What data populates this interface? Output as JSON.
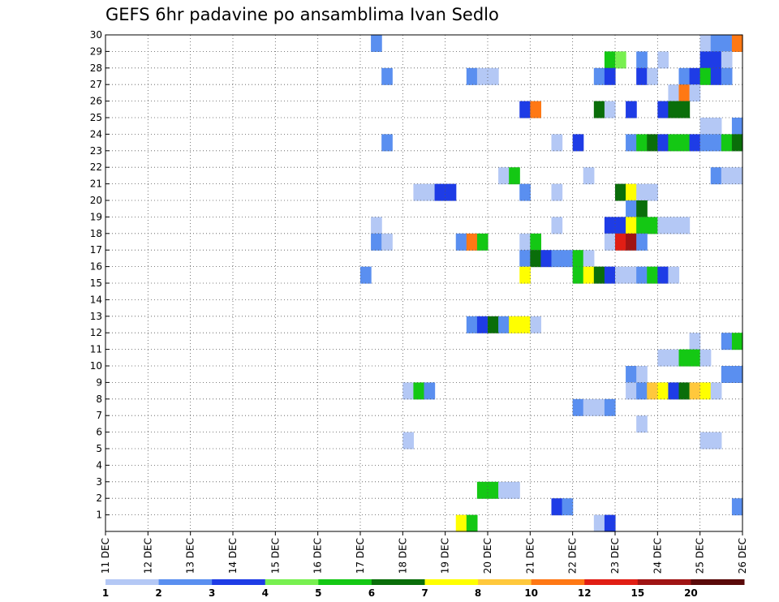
{
  "chart_data": {
    "type": "heatmap",
    "title": "GEFS 6hr padavine po ansamblima Ivan Sedlo",
    "x_tick_labels": [
      "11 DEC",
      "12 DEC",
      "13 DEC",
      "14 DEC",
      "15 DEC",
      "16 DEC",
      "17 DEC",
      "18 DEC",
      "19 DEC",
      "20 DEC",
      "21 DEC",
      "22 DEC",
      "23 DEC",
      "24 DEC",
      "25 DEC",
      "26 DEC"
    ],
    "y_tick_labels": [
      "1",
      "2",
      "3",
      "4",
      "5",
      "6",
      "7",
      "8",
      "9",
      "10",
      "11",
      "12",
      "13",
      "14",
      "15",
      "16",
      "17",
      "18",
      "19",
      "20",
      "21",
      "22",
      "23",
      "24",
      "25",
      "26",
      "27",
      "28",
      "29",
      "30"
    ],
    "x_range_days": [
      11,
      26
    ],
    "y_range": [
      0,
      30
    ],
    "grid": "dotted",
    "colorbar": {
      "labels": [
        "1",
        "2",
        "3",
        "4",
        "5",
        "6",
        "7",
        "8",
        "10",
        "12",
        "15",
        "20"
      ],
      "colors": [
        "#b4c8f5",
        "#5a8ff0",
        "#1e3ce6",
        "#78f050",
        "#14c814",
        "#0a6e0a",
        "#ffff00",
        "#ffc83c",
        "#ff7814",
        "#e11e14",
        "#a01414",
        "#5a0a0a"
      ]
    },
    "cells": [
      {
        "member": 30,
        "day": 17.25,
        "value": 2
      },
      {
        "member": 30,
        "day": 25.0,
        "value": 1
      },
      {
        "member": 30,
        "day": 25.25,
        "value": 2
      },
      {
        "member": 30,
        "day": 25.5,
        "value": 2
      },
      {
        "member": 30,
        "day": 25.75,
        "value": 9
      },
      {
        "member": 29,
        "day": 22.75,
        "value": 5
      },
      {
        "member": 29,
        "day": 23.0,
        "value": 4
      },
      {
        "member": 29,
        "day": 23.5,
        "value": 2
      },
      {
        "member": 29,
        "day": 24.0,
        "value": 1
      },
      {
        "member": 29,
        "day": 25.0,
        "value": 3
      },
      {
        "member": 29,
        "day": 25.25,
        "value": 3
      },
      {
        "member": 29,
        "day": 25.5,
        "value": 1
      },
      {
        "member": 28,
        "day": 17.5,
        "value": 2
      },
      {
        "member": 28,
        "day": 19.5,
        "value": 2
      },
      {
        "member": 28,
        "day": 19.75,
        "value": 1
      },
      {
        "member": 28,
        "day": 20.0,
        "value": 1
      },
      {
        "member": 28,
        "day": 22.5,
        "value": 2
      },
      {
        "member": 28,
        "day": 22.75,
        "value": 3
      },
      {
        "member": 28,
        "day": 23.5,
        "value": 3
      },
      {
        "member": 28,
        "day": 23.75,
        "value": 1
      },
      {
        "member": 28,
        "day": 24.5,
        "value": 2
      },
      {
        "member": 28,
        "day": 24.75,
        "value": 3
      },
      {
        "member": 28,
        "day": 25.0,
        "value": 5
      },
      {
        "member": 28,
        "day": 25.25,
        "value": 3
      },
      {
        "member": 28,
        "day": 25.5,
        "value": 2
      },
      {
        "member": 27,
        "day": 24.25,
        "value": 1
      },
      {
        "member": 27,
        "day": 24.5,
        "value": 9
      },
      {
        "member": 27,
        "day": 24.75,
        "value": 1
      },
      {
        "member": 26,
        "day": 20.75,
        "value": 3
      },
      {
        "member": 26,
        "day": 21.0,
        "value": 9
      },
      {
        "member": 26,
        "day": 22.5,
        "value": 6
      },
      {
        "member": 26,
        "day": 22.75,
        "value": 1
      },
      {
        "member": 26,
        "day": 23.25,
        "value": 3
      },
      {
        "member": 26,
        "day": 24.0,
        "value": 3
      },
      {
        "member": 26,
        "day": 24.25,
        "value": 6
      },
      {
        "member": 26,
        "day": 24.5,
        "value": 6
      },
      {
        "member": 25,
        "day": 25.0,
        "value": 1
      },
      {
        "member": 25,
        "day": 25.25,
        "value": 1
      },
      {
        "member": 25,
        "day": 25.75,
        "value": 2
      },
      {
        "member": 24,
        "day": 17.5,
        "value": 2
      },
      {
        "member": 24,
        "day": 21.5,
        "value": 1
      },
      {
        "member": 24,
        "day": 22.0,
        "value": 3
      },
      {
        "member": 24,
        "day": 23.25,
        "value": 2
      },
      {
        "member": 24,
        "day": 23.5,
        "value": 5
      },
      {
        "member": 24,
        "day": 23.75,
        "value": 6
      },
      {
        "member": 24,
        "day": 24.0,
        "value": 3
      },
      {
        "member": 24,
        "day": 24.25,
        "value": 5
      },
      {
        "member": 24,
        "day": 24.5,
        "value": 5
      },
      {
        "member": 24,
        "day": 24.75,
        "value": 3
      },
      {
        "member": 24,
        "day": 25.0,
        "value": 2
      },
      {
        "member": 24,
        "day": 25.25,
        "value": 2
      },
      {
        "member": 24,
        "day": 25.5,
        "value": 5
      },
      {
        "member": 24,
        "day": 25.75,
        "value": 6
      },
      {
        "member": 22,
        "day": 20.25,
        "value": 1
      },
      {
        "member": 22,
        "day": 20.5,
        "value": 5
      },
      {
        "member": 22,
        "day": 22.25,
        "value": 1
      },
      {
        "member": 22,
        "day": 25.25,
        "value": 2
      },
      {
        "member": 22,
        "day": 25.5,
        "value": 1
      },
      {
        "member": 22,
        "day": 25.75,
        "value": 1
      },
      {
        "member": 21,
        "day": 18.25,
        "value": 1
      },
      {
        "member": 21,
        "day": 18.5,
        "value": 1
      },
      {
        "member": 21,
        "day": 18.75,
        "value": 3
      },
      {
        "member": 21,
        "day": 19.0,
        "value": 3
      },
      {
        "member": 21,
        "day": 20.75,
        "value": 2
      },
      {
        "member": 21,
        "day": 21.5,
        "value": 1
      },
      {
        "member": 21,
        "day": 23.0,
        "value": 6
      },
      {
        "member": 21,
        "day": 23.25,
        "value": 7
      },
      {
        "member": 21,
        "day": 23.5,
        "value": 1
      },
      {
        "member": 21,
        "day": 23.75,
        "value": 1
      },
      {
        "member": 20,
        "day": 23.25,
        "value": 2
      },
      {
        "member": 20,
        "day": 23.5,
        "value": 6
      },
      {
        "member": 19,
        "day": 17.25,
        "value": 1
      },
      {
        "member": 19,
        "day": 21.5,
        "value": 1
      },
      {
        "member": 19,
        "day": 22.75,
        "value": 3
      },
      {
        "member": 19,
        "day": 23.0,
        "value": 3
      },
      {
        "member": 19,
        "day": 23.25,
        "value": 7
      },
      {
        "member": 19,
        "day": 23.5,
        "value": 5
      },
      {
        "member": 19,
        "day": 23.75,
        "value": 5
      },
      {
        "member": 19,
        "day": 24.0,
        "value": 1
      },
      {
        "member": 19,
        "day": 24.25,
        "value": 1
      },
      {
        "member": 19,
        "day": 24.5,
        "value": 1
      },
      {
        "member": 18,
        "day": 17.25,
        "value": 2
      },
      {
        "member": 18,
        "day": 17.5,
        "value": 1
      },
      {
        "member": 18,
        "day": 19.25,
        "value": 2
      },
      {
        "member": 18,
        "day": 19.5,
        "value": 9
      },
      {
        "member": 18,
        "day": 19.75,
        "value": 5
      },
      {
        "member": 18,
        "day": 20.75,
        "value": 1
      },
      {
        "member": 18,
        "day": 21.0,
        "value": 5
      },
      {
        "member": 18,
        "day": 22.75,
        "value": 1
      },
      {
        "member": 18,
        "day": 23.0,
        "value": 10
      },
      {
        "member": 18,
        "day": 23.25,
        "value": 11
      },
      {
        "member": 18,
        "day": 23.5,
        "value": 2
      },
      {
        "member": 17,
        "day": 20.75,
        "value": 2
      },
      {
        "member": 17,
        "day": 21.0,
        "value": 6
      },
      {
        "member": 17,
        "day": 21.25,
        "value": 3
      },
      {
        "member": 17,
        "day": 21.5,
        "value": 2
      },
      {
        "member": 17,
        "day": 21.75,
        "value": 2
      },
      {
        "member": 17,
        "day": 22.0,
        "value": 5
      },
      {
        "member": 17,
        "day": 22.25,
        "value": 1
      },
      {
        "member": 16,
        "day": 17.0,
        "value": 2
      },
      {
        "member": 16,
        "day": 20.75,
        "value": 7
      },
      {
        "member": 16,
        "day": 22.0,
        "value": 5
      },
      {
        "member": 16,
        "day": 22.25,
        "value": 7
      },
      {
        "member": 16,
        "day": 22.5,
        "value": 6
      },
      {
        "member": 16,
        "day": 22.75,
        "value": 3
      },
      {
        "member": 16,
        "day": 23.0,
        "value": 1
      },
      {
        "member": 16,
        "day": 23.25,
        "value": 1
      },
      {
        "member": 16,
        "day": 23.5,
        "value": 2
      },
      {
        "member": 16,
        "day": 23.75,
        "value": 5
      },
      {
        "member": 16,
        "day": 24.0,
        "value": 3
      },
      {
        "member": 16,
        "day": 24.25,
        "value": 1
      },
      {
        "member": 13,
        "day": 19.5,
        "value": 2
      },
      {
        "member": 13,
        "day": 19.75,
        "value": 3
      },
      {
        "member": 13,
        "day": 20.0,
        "value": 6
      },
      {
        "member": 13,
        "day": 20.25,
        "value": 2
      },
      {
        "member": 13,
        "day": 20.5,
        "value": 7
      },
      {
        "member": 13,
        "day": 20.75,
        "value": 7
      },
      {
        "member": 13,
        "day": 21.0,
        "value": 1
      },
      {
        "member": 12,
        "day": 24.75,
        "value": 1
      },
      {
        "member": 12,
        "day": 25.5,
        "value": 2
      },
      {
        "member": 12,
        "day": 25.75,
        "value": 5
      },
      {
        "member": 11,
        "day": 24.0,
        "value": 1
      },
      {
        "member": 11,
        "day": 24.25,
        "value": 1
      },
      {
        "member": 11,
        "day": 24.5,
        "value": 5
      },
      {
        "member": 11,
        "day": 24.75,
        "value": 5
      },
      {
        "member": 11,
        "day": 25.0,
        "value": 1
      },
      {
        "member": 10,
        "day": 23.25,
        "value": 2
      },
      {
        "member": 10,
        "day": 23.5,
        "value": 1
      },
      {
        "member": 10,
        "day": 25.5,
        "value": 2
      },
      {
        "member": 10,
        "day": 25.75,
        "value": 2
      },
      {
        "member": 9,
        "day": 18.0,
        "value": 1
      },
      {
        "member": 9,
        "day": 18.25,
        "value": 5
      },
      {
        "member": 9,
        "day": 18.5,
        "value": 2
      },
      {
        "member": 9,
        "day": 23.25,
        "value": 1
      },
      {
        "member": 9,
        "day": 23.5,
        "value": 2
      },
      {
        "member": 9,
        "day": 23.75,
        "value": 8
      },
      {
        "member": 9,
        "day": 24.0,
        "value": 7
      },
      {
        "member": 9,
        "day": 24.25,
        "value": 3
      },
      {
        "member": 9,
        "day": 24.5,
        "value": 6
      },
      {
        "member": 9,
        "day": 24.75,
        "value": 8
      },
      {
        "member": 9,
        "day": 25.0,
        "value": 7
      },
      {
        "member": 9,
        "day": 25.25,
        "value": 1
      },
      {
        "member": 8,
        "day": 22.0,
        "value": 2
      },
      {
        "member": 8,
        "day": 22.25,
        "value": 1
      },
      {
        "member": 8,
        "day": 22.5,
        "value": 1
      },
      {
        "member": 8,
        "day": 22.75,
        "value": 2
      },
      {
        "member": 7,
        "day": 23.5,
        "value": 1
      },
      {
        "member": 6,
        "day": 18.0,
        "value": 1
      },
      {
        "member": 6,
        "day": 25.0,
        "value": 1
      },
      {
        "member": 6,
        "day": 25.25,
        "value": 1
      },
      {
        "member": 3,
        "day": 19.75,
        "value": 5
      },
      {
        "member": 3,
        "day": 20.0,
        "value": 5
      },
      {
        "member": 3,
        "day": 20.25,
        "value": 1
      },
      {
        "member": 3,
        "day": 20.5,
        "value": 1
      },
      {
        "member": 2,
        "day": 21.5,
        "value": 3
      },
      {
        "member": 2,
        "day": 21.75,
        "value": 2
      },
      {
        "member": 2,
        "day": 25.75,
        "value": 2
      },
      {
        "member": 1,
        "day": 19.25,
        "value": 7
      },
      {
        "member": 1,
        "day": 19.5,
        "value": 5
      },
      {
        "member": 1,
        "day": 22.5,
        "value": 1
      },
      {
        "member": 1,
        "day": 22.75,
        "value": 3
      }
    ]
  }
}
